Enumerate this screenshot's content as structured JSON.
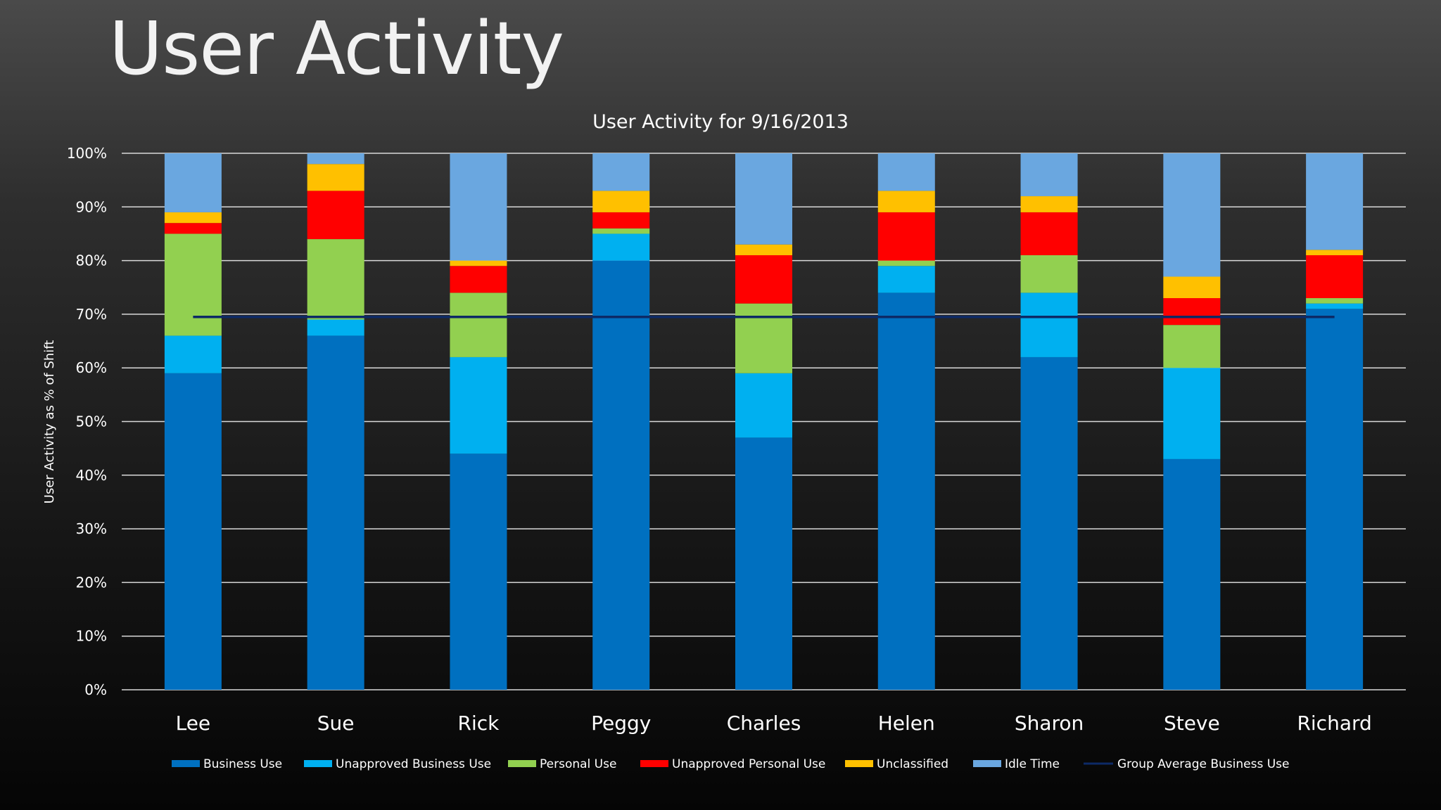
{
  "slide_title": "User Activity",
  "colors": {
    "Business Use": "#0070c0",
    "Unapproved Business Use": "#00b0f0",
    "Personal Use": "#92d050",
    "Unapproved Personal Use": "#ff0000",
    "Unclassified": "#ffc000",
    "Idle Time": "#6aa7e0",
    "Group Average Business Use": "#0d2a66"
  },
  "chart_data": {
    "type": "bar",
    "stacked": true,
    "title": "User Activity for 9/16/2013",
    "xlabel": "",
    "ylabel": "User Activity as % of Shift",
    "ylim": [
      0,
      100
    ],
    "yticks": [
      "0%",
      "10%",
      "20%",
      "30%",
      "40%",
      "50%",
      "60%",
      "70%",
      "80%",
      "90%",
      "100%"
    ],
    "categories": [
      "Lee",
      "Sue",
      "Rick",
      "Peggy",
      "Charles",
      "Helen",
      "Sharon",
      "Steve",
      "Richard"
    ],
    "series": [
      {
        "name": "Business Use",
        "values": [
          59,
          66,
          44,
          80,
          47,
          74,
          62,
          43,
          71
        ]
      },
      {
        "name": "Unapproved Business Use",
        "values": [
          7,
          3,
          18,
          5,
          12,
          5,
          12,
          17,
          1
        ]
      },
      {
        "name": "Personal Use",
        "values": [
          19,
          15,
          12,
          1,
          13,
          1,
          7,
          8,
          1
        ]
      },
      {
        "name": "Unapproved Personal Use",
        "values": [
          2,
          9,
          5,
          3,
          9,
          9,
          8,
          5,
          8
        ]
      },
      {
        "name": "Unclassified",
        "values": [
          2,
          5,
          1,
          4,
          2,
          4,
          3,
          4,
          1
        ]
      },
      {
        "name": "Idle Time",
        "values": [
          11,
          2,
          20,
          7,
          17,
          7,
          8,
          23,
          18
        ]
      }
    ],
    "line_series": {
      "name": "Group Average Business Use",
      "value": 69.5
    },
    "grid": true,
    "legend": "bottom"
  }
}
